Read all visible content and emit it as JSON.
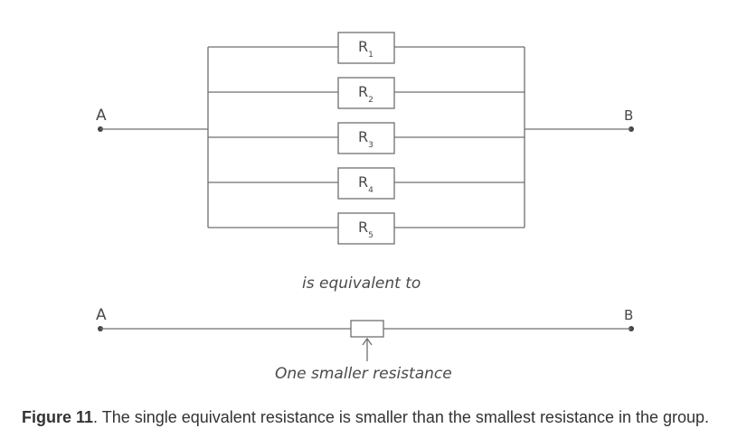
{
  "figure": {
    "terminal_a": "A",
    "terminal_b": "B",
    "resistors": [
      {
        "name": "R",
        "sub": "1"
      },
      {
        "name": "R",
        "sub": "2"
      },
      {
        "name": "R",
        "sub": "3"
      },
      {
        "name": "R",
        "sub": "4"
      },
      {
        "name": "R",
        "sub": "5"
      }
    ],
    "equivalence_text": "is equivalent to",
    "lower_terminal_a": "A",
    "lower_terminal_b": "B",
    "arrow_label": "One smaller resistance"
  },
  "caption": {
    "label": "Figure 11",
    "text": ". The single equivalent resistance is smaller than the smallest resistance in the group."
  }
}
